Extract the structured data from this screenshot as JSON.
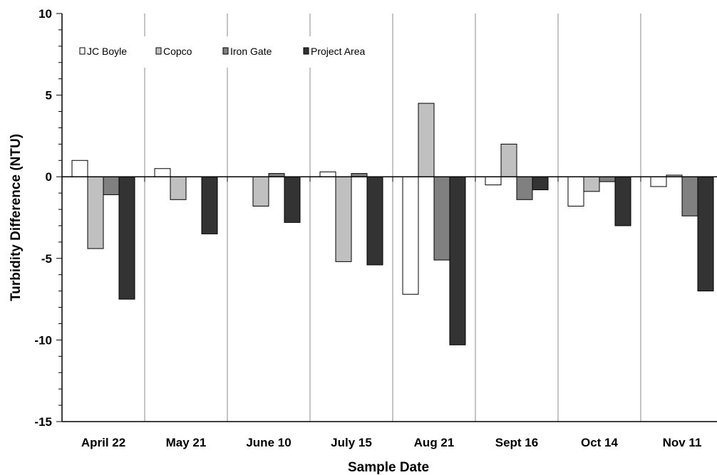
{
  "chart_data": {
    "type": "bar",
    "xlabel": "Sample Date",
    "ylabel": "Turbidity Difference (NTU)",
    "ylim": [
      -15,
      10
    ],
    "yticks": [
      -15,
      -10,
      -5,
      0,
      5,
      10
    ],
    "categories": [
      "April 22",
      "May 21",
      "June 10",
      "July 15",
      "Aug 21",
      "Sept 16",
      "Oct 14",
      "Nov 11"
    ],
    "series": [
      {
        "name": "JC Boyle",
        "color": "#ffffff",
        "values": [
          1.0,
          0.5,
          0.0,
          0.3,
          -7.2,
          -0.5,
          -1.8,
          -0.6
        ]
      },
      {
        "name": "Copco",
        "color": "#c0c0c0",
        "values": [
          -4.4,
          -1.4,
          -1.8,
          -5.2,
          4.5,
          2.0,
          -0.9,
          0.1
        ]
      },
      {
        "name": "Iron Gate",
        "color": "#808080",
        "values": [
          -1.1,
          0.0,
          0.2,
          0.2,
          -5.1,
          -1.4,
          -0.3,
          -2.4
        ]
      },
      {
        "name": "Project Area",
        "color": "#333333",
        "values": [
          -7.5,
          -3.5,
          -2.8,
          -5.4,
          -10.3,
          -0.8,
          -3.0,
          -7.0
        ]
      }
    ],
    "legend_position": "top-left",
    "grid": "vertical category separators"
  }
}
